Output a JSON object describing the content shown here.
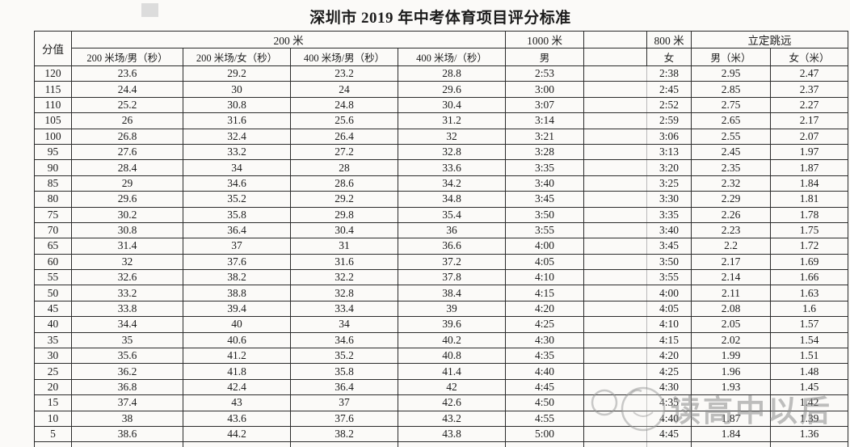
{
  "title": "深圳市 2019 年中考体育项目评分标准",
  "table": {
    "header": {
      "score": "分值",
      "group_200": "200 米",
      "group_1000": "1000 米",
      "group_800": "800 米",
      "group_jump": "立定跳远",
      "sub": {
        "c1": "200 米场/男（秒）",
        "c2": "200 米场/女（秒）",
        "c3": "400 米场/男（秒）",
        "c4": "400 米场/（秒）",
        "c5": "男",
        "c6": "",
        "c7": "女",
        "c8": "男（米）",
        "c9": "女（米）"
      }
    },
    "rows": [
      [
        "120",
        "23.6",
        "29.2",
        "23.2",
        "28.8",
        "2:53",
        "",
        "2:38",
        "2.95",
        "2.47"
      ],
      [
        "115",
        "24.4",
        "30",
        "24",
        "29.6",
        "3:00",
        "",
        "2:45",
        "2.85",
        "2.37"
      ],
      [
        "110",
        "25.2",
        "30.8",
        "24.8",
        "30.4",
        "3:07",
        "",
        "2:52",
        "2.75",
        "2.27"
      ],
      [
        "105",
        "26",
        "31.6",
        "25.6",
        "31.2",
        "3:14",
        "",
        "2:59",
        "2.65",
        "2.17"
      ],
      [
        "100",
        "26.8",
        "32.4",
        "26.4",
        "32",
        "3:21",
        "",
        "3:06",
        "2.55",
        "2.07"
      ],
      [
        "95",
        "27.6",
        "33.2",
        "27.2",
        "32.8",
        "3:28",
        "",
        "3:13",
        "2.45",
        "1.97"
      ],
      [
        "90",
        "28.4",
        "34",
        "28",
        "33.6",
        "3:35",
        "",
        "3:20",
        "2.35",
        "1.87"
      ],
      [
        "85",
        "29",
        "34.6",
        "28.6",
        "34.2",
        "3:40",
        "",
        "3:25",
        "2.32",
        "1.84"
      ],
      [
        "80",
        "29.6",
        "35.2",
        "29.2",
        "34.8",
        "3:45",
        "",
        "3:30",
        "2.29",
        "1.81"
      ],
      [
        "75",
        "30.2",
        "35.8",
        "29.8",
        "35.4",
        "3:50",
        "",
        "3:35",
        "2.26",
        "1.78"
      ],
      [
        "70",
        "30.8",
        "36.4",
        "30.4",
        "36",
        "3:55",
        "",
        "3:40",
        "2.23",
        "1.75"
      ],
      [
        "65",
        "31.4",
        "37",
        "31",
        "36.6",
        "4:00",
        "",
        "3:45",
        "2.2",
        "1.72"
      ],
      [
        "60",
        "32",
        "37.6",
        "31.6",
        "37.2",
        "4:05",
        "",
        "3:50",
        "2.17",
        "1.69"
      ],
      [
        "55",
        "32.6",
        "38.2",
        "32.2",
        "37.8",
        "4:10",
        "",
        "3:55",
        "2.14",
        "1.66"
      ],
      [
        "50",
        "33.2",
        "38.8",
        "32.8",
        "38.4",
        "4:15",
        "",
        "4:00",
        "2.11",
        "1.63"
      ],
      [
        "45",
        "33.8",
        "39.4",
        "33.4",
        "39",
        "4:20",
        "",
        "4:05",
        "2.08",
        "1.6"
      ],
      [
        "40",
        "34.4",
        "40",
        "34",
        "39.6",
        "4:25",
        "",
        "4:10",
        "2.05",
        "1.57"
      ],
      [
        "35",
        "35",
        "40.6",
        "34.6",
        "40.2",
        "4:30",
        "",
        "4:15",
        "2.02",
        "1.54"
      ],
      [
        "30",
        "35.6",
        "41.2",
        "35.2",
        "40.8",
        "4:35",
        "",
        "4:20",
        "1.99",
        "1.51"
      ],
      [
        "25",
        "36.2",
        "41.8",
        "35.8",
        "41.4",
        "4:40",
        "",
        "4:25",
        "1.96",
        "1.48"
      ],
      [
        "20",
        "36.8",
        "42.4",
        "36.4",
        "42",
        "4:45",
        "",
        "4:30",
        "1.93",
        "1.45"
      ],
      [
        "15",
        "37.4",
        "43",
        "37",
        "42.6",
        "4:50",
        "",
        "4:35",
        "",
        "1.42"
      ],
      [
        "10",
        "38",
        "43.6",
        "37.6",
        "43.2",
        "4:55",
        "",
        "4:40",
        "1.87",
        "1.39"
      ],
      [
        "5",
        "38.6",
        "44.2",
        "38.2",
        "43.8",
        "5:00",
        "",
        "4:45",
        "1.84",
        "1.36"
      ]
    ],
    "partial_row": [
      "",
      "",
      "",
      "",
      "",
      "",
      "",
      "",
      "",
      ""
    ]
  },
  "watermark": {
    "text": "读高中以后",
    "color": "#8a8a8a"
  }
}
